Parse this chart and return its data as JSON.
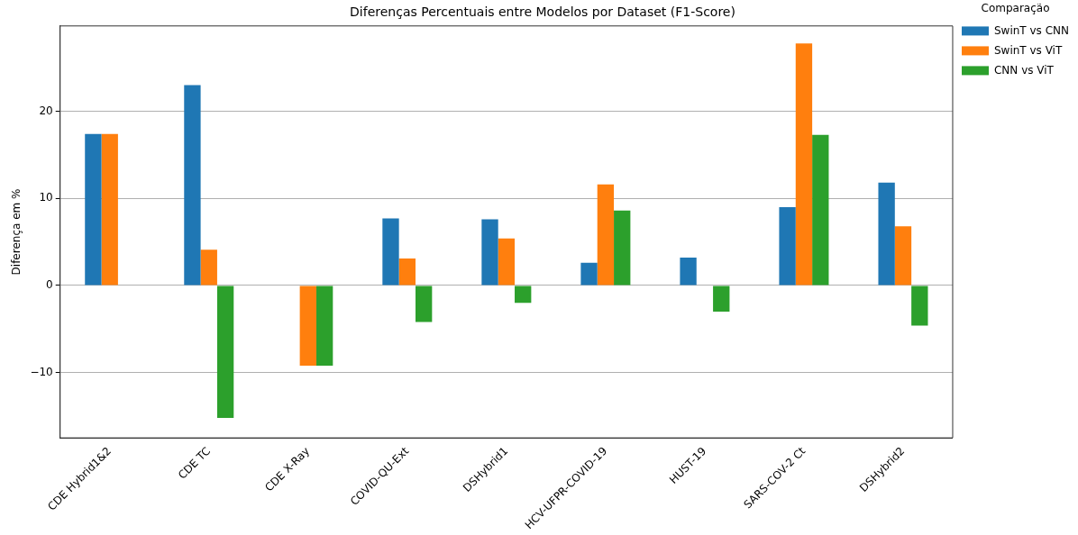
{
  "chart_data": {
    "type": "bar",
    "title": "Diferenças Percentuais entre Modelos por Dataset (F1-Score)",
    "ylabel": "Diferença em %",
    "legend_title": "Comparação",
    "categories": [
      "CDE Hybrid1&2",
      "CDE TC",
      "CDE X-Ray",
      "COVID-QU-Ext",
      "DSHybrid1",
      "HCV-UFPR-COVID-19",
      "HUST-19",
      "SARS-COV-2 Ct",
      "DSHybrid2"
    ],
    "series": [
      {
        "name": "SwinT vs CNN",
        "color": "#1f77b4",
        "values": [
          17.4,
          23.0,
          0,
          7.7,
          7.6,
          2.6,
          3.2,
          9.0,
          11.8
        ]
      },
      {
        "name": "SwinT vs ViT",
        "color": "#ff7f0e",
        "values": [
          17.4,
          4.1,
          -9.2,
          3.1,
          5.4,
          11.6,
          0,
          27.8,
          6.8
        ]
      },
      {
        "name": "CNN vs ViT",
        "color": "#2ca02c",
        "values": [
          0,
          -15.2,
          -9.2,
          -4.2,
          -2.0,
          8.6,
          -3.0,
          17.3,
          -4.6
        ]
      }
    ],
    "ylim": [
      -17.5,
      29.8
    ],
    "yticks": [
      {
        "value": -10,
        "label": "−10"
      },
      0,
      10,
      20
    ],
    "grid": "y",
    "legend": "top right"
  }
}
